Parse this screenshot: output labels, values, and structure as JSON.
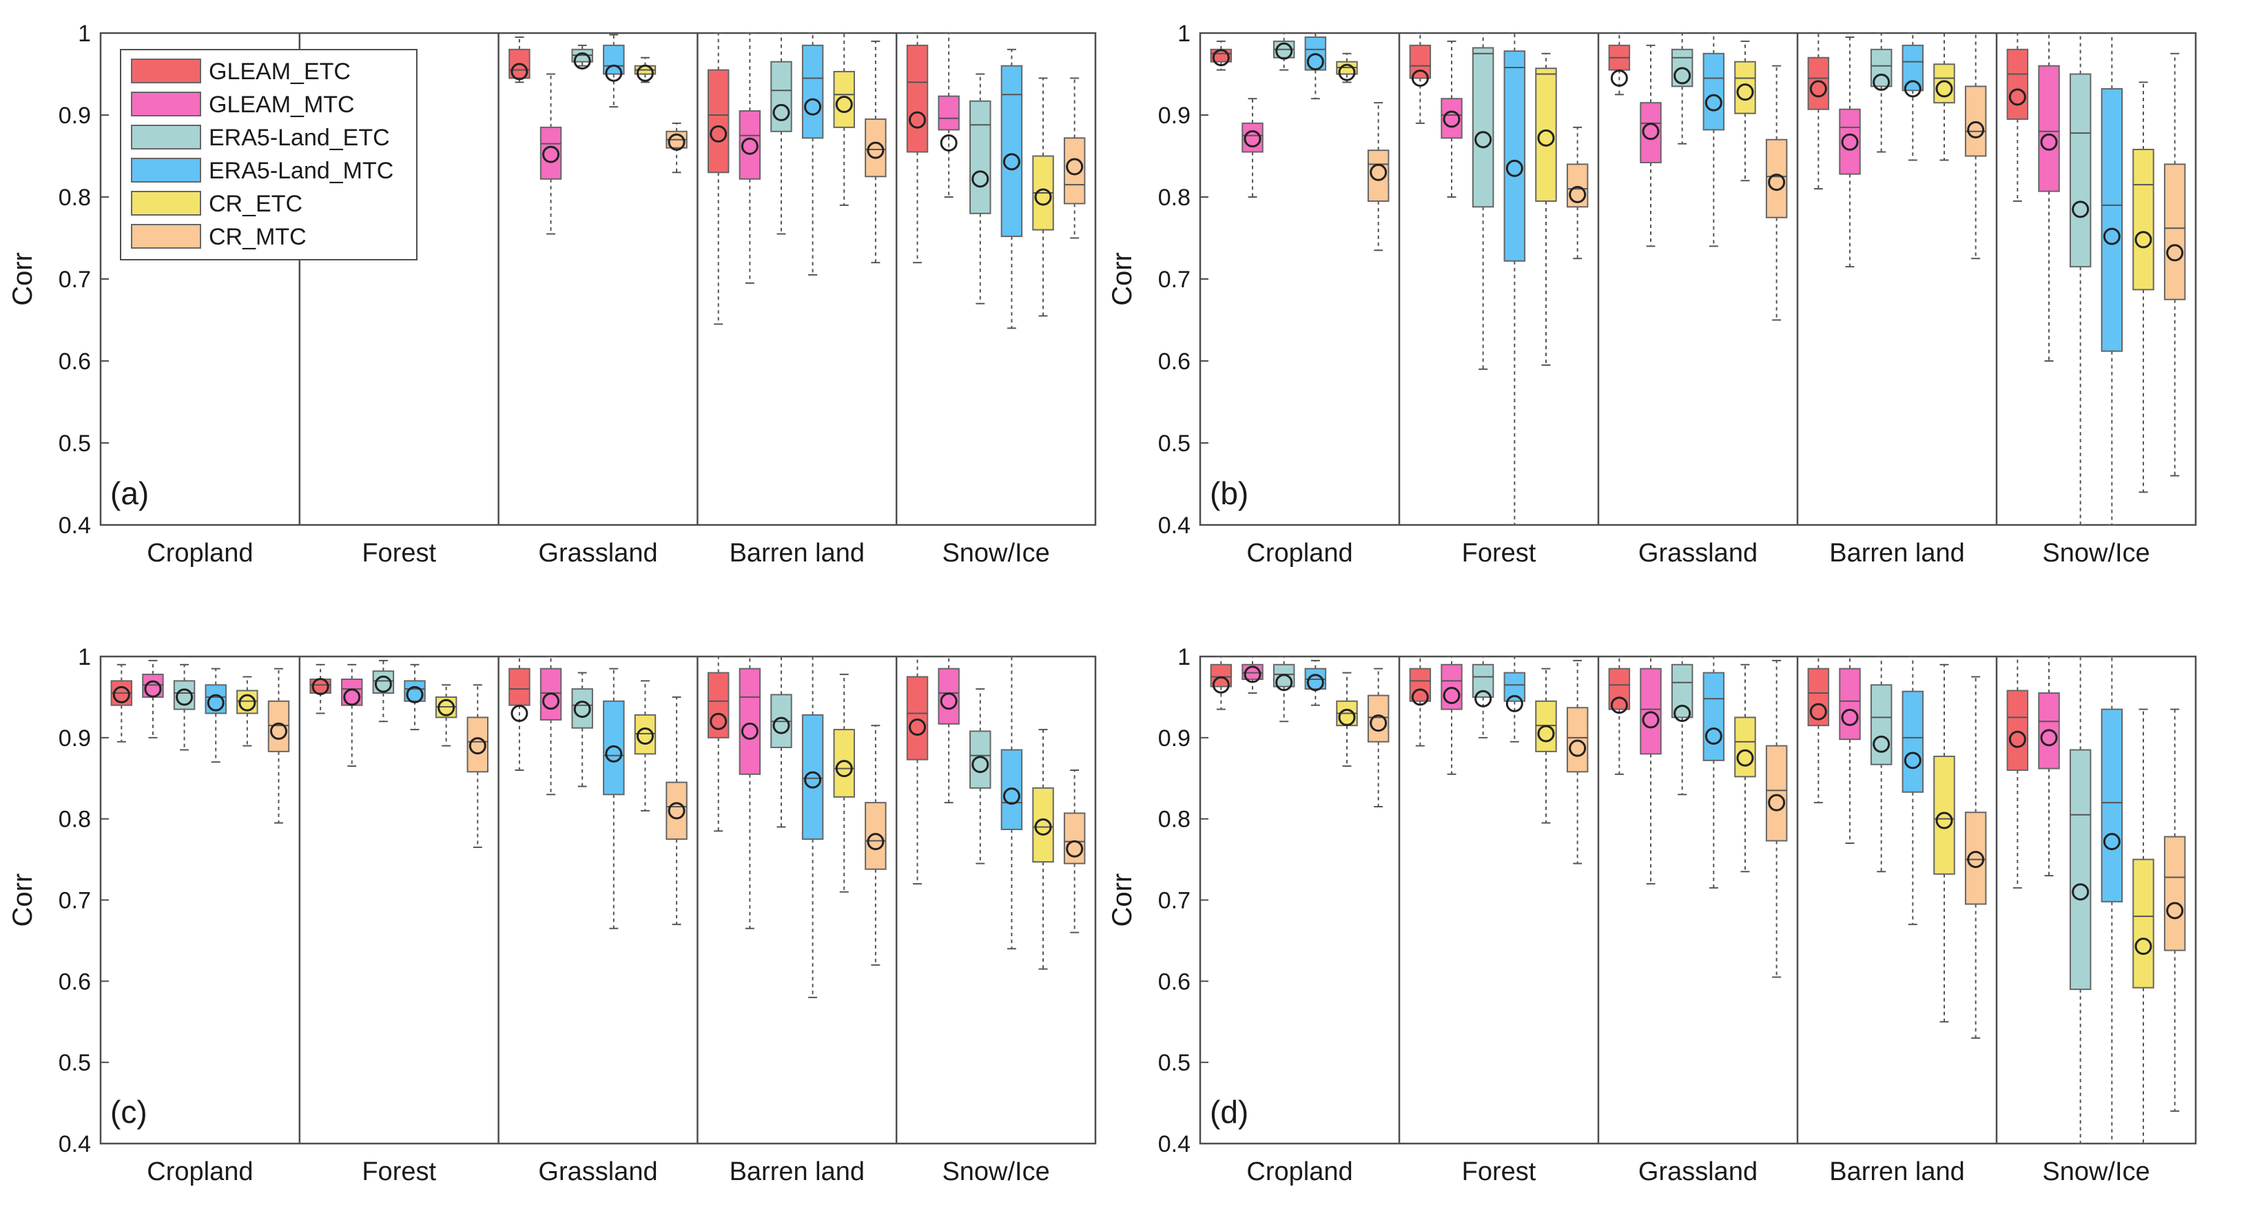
{
  "figure": {
    "ylabel": "Corr",
    "categories": [
      "Cropland",
      "Forest",
      "Grassland",
      "Barren land",
      "Snow/Ice"
    ],
    "yticks": [
      "0.4",
      "0.5",
      "0.6",
      "0.7",
      "0.8",
      "0.9",
      "1"
    ],
    "legend": [
      "GLEAM_ETC",
      "GLEAM_MTC",
      "ERA5-Land_ETC",
      "ERA5-Land_MTC",
      "CR_ETC",
      "CR_MTC"
    ]
  },
  "colors": {
    "series": [
      "#f2666a",
      "#f56dbe",
      "#a7d4d2",
      "#63c3f5",
      "#f3e36a",
      "#fbc897"
    ],
    "axis": "#4d4d4d",
    "mean_marker": "#222222"
  },
  "chart_data": [
    {
      "type": "boxplot",
      "panel": "(a)",
      "ylabel": "Corr",
      "ylim": [
        0.4,
        1.0
      ],
      "categories": [
        "Cropland",
        "Forest",
        "Grassland",
        "Barren land",
        "Snow/Ice"
      ],
      "series_names": [
        "GLEAM_ETC",
        "GLEAM_MTC",
        "ERA5-Land_ETC",
        "ERA5-Land_MTC",
        "CR_ETC",
        "CR_MTC"
      ],
      "boxes": [
        [
          null,
          null,
          null,
          null,
          null,
          null
        ],
        [
          null,
          null,
          null,
          null,
          null,
          null
        ],
        [
          [
            0.94,
            0.945,
            0.955,
            0.98,
            0.995,
            0.953
          ],
          [
            0.755,
            0.822,
            0.865,
            0.885,
            0.95,
            0.852
          ],
          [
            0.96,
            0.965,
            0.973,
            0.98,
            0.985,
            0.966
          ],
          [
            0.91,
            0.95,
            0.96,
            0.985,
            0.998,
            0.951
          ],
          [
            0.94,
            0.95,
            0.955,
            0.96,
            0.97,
            0.951
          ],
          [
            0.83,
            0.86,
            0.87,
            0.88,
            0.89,
            0.867
          ]
        ],
        [
          [
            0.645,
            0.83,
            0.9,
            0.955,
            1.0,
            0.877
          ],
          [
            0.695,
            0.822,
            0.875,
            0.905,
            1.0,
            0.862
          ],
          [
            0.755,
            0.88,
            0.93,
            0.965,
            1.0,
            0.903
          ],
          [
            0.705,
            0.872,
            0.945,
            0.985,
            1.0,
            0.91
          ],
          [
            0.79,
            0.885,
            0.925,
            0.953,
            1.0,
            0.913
          ],
          [
            0.72,
            0.825,
            0.858,
            0.895,
            0.99,
            0.857
          ]
        ],
        [
          [
            0.72,
            0.855,
            0.94,
            0.985,
            1.0,
            0.894
          ],
          [
            0.8,
            0.882,
            0.896,
            0.923,
            1.0,
            0.866
          ],
          [
            0.67,
            0.78,
            0.888,
            0.917,
            0.95,
            0.822
          ],
          [
            0.64,
            0.752,
            0.925,
            0.96,
            0.98,
            0.843
          ],
          [
            0.655,
            0.76,
            0.805,
            0.85,
            0.945,
            0.8
          ],
          [
            0.75,
            0.792,
            0.815,
            0.872,
            0.945,
            0.837
          ]
        ]
      ]
    },
    {
      "type": "boxplot",
      "panel": "(b)",
      "ylabel": "Corr",
      "ylim": [
        0.4,
        1.0
      ],
      "categories": [
        "Cropland",
        "Forest",
        "Grassland",
        "Barren land",
        "Snow/Ice"
      ],
      "series_names": [
        "GLEAM_ETC",
        "GLEAM_MTC",
        "ERA5-Land_ETC",
        "ERA5-Land_MTC",
        "CR_ETC",
        "CR_MTC"
      ],
      "boxes": [
        [
          [
            0.955,
            0.965,
            0.975,
            0.98,
            0.99,
            0.97
          ],
          [
            0.8,
            0.855,
            0.875,
            0.89,
            0.92,
            0.871
          ],
          [
            0.955,
            0.97,
            0.98,
            0.99,
            1.0,
            0.978
          ],
          [
            0.92,
            0.955,
            0.98,
            0.995,
            1.0,
            0.965
          ],
          [
            0.94,
            0.95,
            0.958,
            0.965,
            0.975,
            0.952
          ],
          [
            0.735,
            0.795,
            0.84,
            0.857,
            0.915,
            0.83
          ]
        ],
        [
          [
            0.89,
            0.945,
            0.96,
            0.985,
            1.0,
            0.945
          ],
          [
            0.8,
            0.872,
            0.9,
            0.92,
            0.99,
            0.895
          ],
          [
            0.59,
            0.788,
            0.975,
            0.982,
            1.0,
            0.87
          ],
          [
            0.4,
            0.722,
            0.958,
            0.978,
            1.0,
            0.835
          ],
          [
            0.595,
            0.795,
            0.95,
            0.957,
            0.975,
            0.872
          ],
          [
            0.725,
            0.788,
            0.81,
            0.84,
            0.885,
            0.803
          ]
        ],
        [
          [
            0.925,
            0.955,
            0.97,
            0.985,
            1.0,
            0.945
          ],
          [
            0.74,
            0.842,
            0.89,
            0.915,
            0.985,
            0.88
          ],
          [
            0.865,
            0.935,
            0.97,
            0.98,
            1.0,
            0.948
          ],
          [
            0.74,
            0.882,
            0.945,
            0.975,
            1.0,
            0.915
          ],
          [
            0.82,
            0.902,
            0.945,
            0.965,
            0.99,
            0.928
          ],
          [
            0.65,
            0.775,
            0.825,
            0.87,
            0.96,
            0.818
          ]
        ],
        [
          [
            0.81,
            0.907,
            0.945,
            0.97,
            1.0,
            0.932
          ],
          [
            0.715,
            0.828,
            0.885,
            0.907,
            0.995,
            0.867
          ],
          [
            0.855,
            0.935,
            0.96,
            0.98,
            1.0,
            0.94
          ],
          [
            0.845,
            0.93,
            0.965,
            0.985,
            1.0,
            0.932
          ],
          [
            0.845,
            0.915,
            0.945,
            0.962,
            1.0,
            0.932
          ],
          [
            0.725,
            0.85,
            0.88,
            0.935,
            1.0,
            0.882
          ]
        ],
        [
          [
            0.795,
            0.895,
            0.95,
            0.98,
            1.0,
            0.922
          ],
          [
            0.6,
            0.807,
            0.88,
            0.96,
            1.0,
            0.867
          ],
          [
            0.4,
            0.715,
            0.878,
            0.95,
            1.0,
            0.785
          ],
          [
            0.4,
            0.612,
            0.79,
            0.932,
            1.0,
            0.752
          ],
          [
            0.44,
            0.687,
            0.815,
            0.858,
            0.94,
            0.748
          ],
          [
            0.46,
            0.675,
            0.762,
            0.84,
            0.975,
            0.732
          ]
        ]
      ]
    },
    {
      "type": "boxplot",
      "panel": "(c)",
      "ylabel": "Corr",
      "ylim": [
        0.4,
        1.0
      ],
      "categories": [
        "Cropland",
        "Forest",
        "Grassland",
        "Barren land",
        "Snow/Ice"
      ],
      "series_names": [
        "GLEAM_ETC",
        "GLEAM_MTC",
        "ERA5-Land_ETC",
        "ERA5-Land_MTC",
        "CR_ETC",
        "CR_MTC"
      ],
      "boxes": [
        [
          [
            0.895,
            0.94,
            0.955,
            0.97,
            0.99,
            0.953
          ],
          [
            0.9,
            0.95,
            0.965,
            0.978,
            0.995,
            0.96
          ],
          [
            0.885,
            0.935,
            0.955,
            0.97,
            0.99,
            0.95
          ],
          [
            0.87,
            0.93,
            0.95,
            0.965,
            0.985,
            0.943
          ],
          [
            0.89,
            0.93,
            0.945,
            0.958,
            0.975,
            0.943
          ],
          [
            0.795,
            0.883,
            0.915,
            0.945,
            0.985,
            0.908
          ]
        ],
        [
          [
            0.93,
            0.955,
            0.965,
            0.972,
            0.99,
            0.963
          ],
          [
            0.865,
            0.94,
            0.96,
            0.972,
            0.99,
            0.95
          ],
          [
            0.92,
            0.955,
            0.97,
            0.982,
            0.995,
            0.966
          ],
          [
            0.91,
            0.945,
            0.96,
            0.97,
            0.99,
            0.953
          ],
          [
            0.89,
            0.925,
            0.938,
            0.95,
            0.965,
            0.937
          ],
          [
            0.765,
            0.858,
            0.895,
            0.925,
            0.965,
            0.89
          ]
        ],
        [
          [
            0.86,
            0.94,
            0.96,
            0.985,
            1.0,
            0.93
          ],
          [
            0.83,
            0.922,
            0.955,
            0.985,
            1.0,
            0.945
          ],
          [
            0.84,
            0.912,
            0.94,
            0.96,
            0.98,
            0.935
          ],
          [
            0.665,
            0.83,
            0.878,
            0.945,
            0.985,
            0.88
          ],
          [
            0.81,
            0.88,
            0.905,
            0.928,
            0.97,
            0.902
          ],
          [
            0.67,
            0.775,
            0.815,
            0.845,
            0.95,
            0.81
          ]
        ],
        [
          [
            0.785,
            0.9,
            0.945,
            0.98,
            1.0,
            0.92
          ],
          [
            0.665,
            0.855,
            0.95,
            0.985,
            1.0,
            0.908
          ],
          [
            0.79,
            0.888,
            0.92,
            0.953,
            1.0,
            0.915
          ],
          [
            0.58,
            0.775,
            0.85,
            0.928,
            1.0,
            0.848
          ],
          [
            0.71,
            0.827,
            0.862,
            0.91,
            0.978,
            0.862
          ],
          [
            0.62,
            0.738,
            0.773,
            0.82,
            0.915,
            0.772
          ]
        ],
        [
          [
            0.72,
            0.873,
            0.93,
            0.975,
            1.0,
            0.913
          ],
          [
            0.82,
            0.917,
            0.955,
            0.985,
            1.0,
            0.945
          ],
          [
            0.745,
            0.838,
            0.878,
            0.908,
            0.96,
            0.867
          ],
          [
            0.64,
            0.787,
            0.82,
            0.885,
            1.0,
            0.828
          ],
          [
            0.615,
            0.747,
            0.79,
            0.838,
            0.91,
            0.79
          ],
          [
            0.66,
            0.745,
            0.772,
            0.807,
            0.86,
            0.763
          ]
        ]
      ]
    },
    {
      "type": "boxplot",
      "panel": "(d)",
      "ylabel": "Corr",
      "ylim": [
        0.4,
        1.0
      ],
      "categories": [
        "Cropland",
        "Forest",
        "Grassland",
        "Barren land",
        "Snow/Ice"
      ],
      "series_names": [
        "GLEAM_ETC",
        "GLEAM_MTC",
        "ERA5-Land_ETC",
        "ERA5-Land_MTC",
        "CR_ETC",
        "CR_MTC"
      ],
      "boxes": [
        [
          [
            0.935,
            0.963,
            0.975,
            0.99,
            1.0,
            0.965
          ],
          [
            0.955,
            0.972,
            0.98,
            0.99,
            1.0,
            0.978
          ],
          [
            0.92,
            0.963,
            0.978,
            0.99,
            1.0,
            0.968
          ],
          [
            0.94,
            0.96,
            0.972,
            0.985,
            0.995,
            0.968
          ],
          [
            0.865,
            0.915,
            0.93,
            0.945,
            0.98,
            0.925
          ],
          [
            0.815,
            0.895,
            0.925,
            0.952,
            0.985,
            0.918
          ]
        ],
        [
          [
            0.89,
            0.945,
            0.97,
            0.985,
            1.0,
            0.95
          ],
          [
            0.855,
            0.935,
            0.97,
            0.99,
            1.0,
            0.952
          ],
          [
            0.9,
            0.95,
            0.975,
            0.99,
            1.0,
            0.948
          ],
          [
            0.895,
            0.945,
            0.965,
            0.98,
            1.0,
            0.942
          ],
          [
            0.795,
            0.883,
            0.915,
            0.945,
            0.985,
            0.905
          ],
          [
            0.745,
            0.858,
            0.9,
            0.937,
            0.995,
            0.887
          ]
        ],
        [
          [
            0.855,
            0.935,
            0.965,
            0.985,
            1.0,
            0.94
          ],
          [
            0.72,
            0.88,
            0.935,
            0.985,
            1.0,
            0.922
          ],
          [
            0.83,
            0.925,
            0.968,
            0.99,
            1.0,
            0.93
          ],
          [
            0.715,
            0.872,
            0.948,
            0.98,
            1.0,
            0.902
          ],
          [
            0.735,
            0.852,
            0.895,
            0.925,
            0.99,
            0.875
          ],
          [
            0.605,
            0.773,
            0.835,
            0.89,
            0.995,
            0.82
          ]
        ],
        [
          [
            0.82,
            0.915,
            0.955,
            0.985,
            1.0,
            0.932
          ],
          [
            0.77,
            0.898,
            0.945,
            0.985,
            1.0,
            0.925
          ],
          [
            0.735,
            0.867,
            0.925,
            0.965,
            1.0,
            0.892
          ],
          [
            0.67,
            0.833,
            0.9,
            0.957,
            1.0,
            0.872
          ],
          [
            0.55,
            0.732,
            0.8,
            0.877,
            0.99,
            0.798
          ],
          [
            0.53,
            0.695,
            0.75,
            0.808,
            0.975,
            0.75
          ]
        ],
        [
          [
            0.715,
            0.86,
            0.925,
            0.958,
            1.0,
            0.898
          ],
          [
            0.73,
            0.862,
            0.92,
            0.955,
            1.0,
            0.9
          ],
          [
            0.4,
            0.59,
            0.805,
            0.885,
            1.0,
            0.71
          ],
          [
            0.4,
            0.698,
            0.82,
            0.935,
            1.0,
            0.772
          ],
          [
            0.4,
            0.592,
            0.68,
            0.75,
            0.935,
            0.643
          ],
          [
            0.44,
            0.638,
            0.728,
            0.778,
            0.935,
            0.687
          ]
        ]
      ]
    }
  ]
}
